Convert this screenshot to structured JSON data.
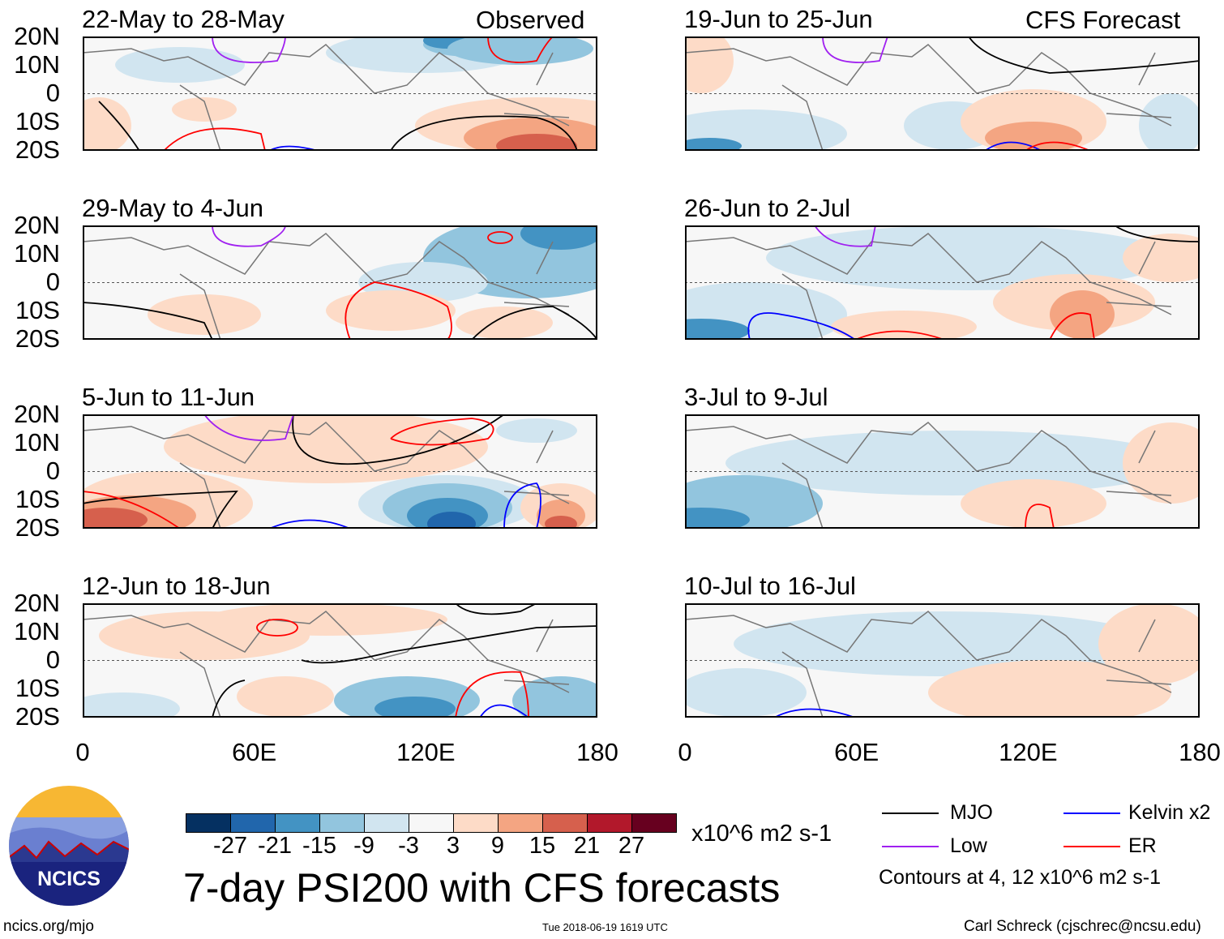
{
  "left_header": "Observed",
  "right_header": "CFS Forecast",
  "panels": {
    "observed": [
      "22-May to 28-May",
      "29-May to 4-Jun",
      "5-Jun to 11-Jun",
      "12-Jun to 18-Jun"
    ],
    "forecast": [
      "19-Jun to 25-Jun",
      "26-Jun to 2-Jul",
      "3-Jul to 9-Jul",
      "10-Jul to 16-Jul"
    ]
  },
  "lat_labels": [
    "20N",
    "10N",
    "0",
    "10S",
    "20S"
  ],
  "lon_labels": [
    "0",
    "60E",
    "120E",
    "180"
  ],
  "colorbar": {
    "labels": [
      "-27",
      "-21",
      "-15",
      "-9",
      "-3",
      "3",
      "9",
      "15",
      "21",
      "27"
    ],
    "colors": [
      "#053061",
      "#2166ac",
      "#4393c3",
      "#92c5de",
      "#d1e5f0",
      "#f7f7f7",
      "#fddbc7",
      "#f4a582",
      "#d6604d",
      "#b2182b",
      "#67001f"
    ],
    "units": "x10^6 m2 s-1"
  },
  "title": "7-day PSI200 with CFS forecasts",
  "legend": {
    "items": [
      {
        "label": "MJO",
        "color": "#000000"
      },
      {
        "label": "Kelvin x2",
        "color": "#0000ff"
      },
      {
        "label": "Low",
        "color": "#a020f0"
      },
      {
        "label": "ER",
        "color": "#ff0000"
      }
    ],
    "note": "Contours at 4, 12 x10^6 m2 s-1"
  },
  "logo": {
    "text": "NCICS"
  },
  "footer": {
    "left": "ncics.org/mjo",
    "center": "Tue 2018-06-19 1619 UTC",
    "right": "Carl Schreck (cjschrec@ncsu.edu)"
  },
  "chart_data": {
    "type": "heatmap",
    "title": "7-day PSI200 with CFS forecasts",
    "variable": "200-hPa streamfunction anomaly",
    "units": "x10^6 m2 s-1",
    "xlim": [
      0,
      180
    ],
    "ylim": [
      -20,
      20
    ],
    "x_ticks": [
      "0",
      "60E",
      "120E",
      "180"
    ],
    "y_ticks": [
      "20N",
      "10N",
      "0",
      "10S",
      "20S"
    ],
    "color_levels": [
      -27,
      -21,
      -15,
      -9,
      -3,
      3,
      9,
      15,
      21,
      27
    ],
    "contour_levels": [
      4,
      12
    ]
  }
}
